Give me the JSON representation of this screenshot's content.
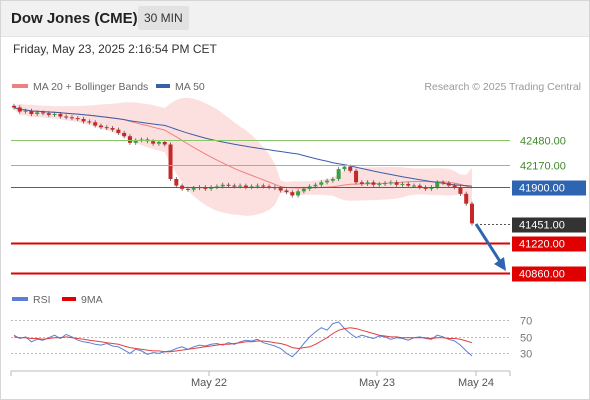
{
  "header": {
    "title": "Dow Jones (CME)",
    "timeframe": "30 MIN",
    "datetime": "Friday, May 23, 2025 2:16:54 PM CET"
  },
  "legend": {
    "ma20": "MA 20 + Bollinger Bands",
    "ma50": "MA 50",
    "copyright": "Research © 2025 Trading Central",
    "rsi": "RSI",
    "rsi_ma": "9MA"
  },
  "colors": {
    "ma20": "#f08080",
    "ma50": "#3b5ea8",
    "bollinger_fill": "#fbdada",
    "resistance": "#8cc46a",
    "pivot": "#2e64b0",
    "support": "#e00000",
    "current_price_box": "#333333",
    "arrow": "#2e64b0",
    "candle_up": "#3aa040",
    "candle_down": "#c62828"
  },
  "chart_data": {
    "type": "candlestick",
    "ylim": [
      40650,
      42900
    ],
    "levels": [
      {
        "label": "42480.00",
        "value": 42480,
        "kind": "resistance"
      },
      {
        "label": "42170.00",
        "value": 42170,
        "kind": "resistance"
      },
      {
        "label": "41900.00",
        "value": 41900,
        "kind": "pivot"
      },
      {
        "label": "41451.00",
        "value": 41451,
        "kind": "current"
      },
      {
        "label": "41220.00",
        "value": 41220,
        "kind": "support"
      },
      {
        "label": "40860.00",
        "value": 40860,
        "kind": "support"
      }
    ],
    "x_ticks": [
      "May 22",
      "May 23",
      "May 24"
    ],
    "close": [
      42870,
      42820,
      42830,
      42790,
      42810,
      42800,
      42780,
      42790,
      42760,
      42750,
      42740,
      42730,
      42700,
      42690,
      42650,
      42630,
      42620,
      42600,
      42560,
      42520,
      42440,
      42470,
      42480,
      42460,
      42430,
      42450,
      42420,
      42000,
      41920,
      41880,
      41870,
      41890,
      41900,
      41880,
      41900,
      41910,
      41930,
      41920,
      41910,
      41920,
      41900,
      41910,
      41920,
      41910,
      41900,
      41890,
      41860,
      41840,
      41800,
      41850,
      41880,
      41910,
      41930,
      41960,
      41980,
      42000,
      42120,
      42150,
      42100,
      41960,
      41940,
      41960,
      41930,
      41940,
      41950,
      41960,
      41930,
      41940,
      41920,
      41920,
      41900,
      41880,
      41900,
      41960,
      41950,
      41920,
      41900,
      41820,
      41700,
      41460
    ],
    "rsi": [
      52,
      48,
      50,
      44,
      47,
      46,
      49,
      52,
      48,
      53,
      50,
      46,
      44,
      43,
      41,
      40,
      42,
      39,
      38,
      34,
      30,
      35,
      33,
      29,
      31,
      30,
      32,
      33,
      36,
      38,
      35,
      38,
      40,
      39,
      41,
      42,
      40,
      43,
      41,
      44,
      46,
      45,
      47,
      43,
      41,
      39,
      36,
      30,
      26,
      33,
      42,
      50,
      56,
      61,
      58,
      66,
      68,
      60,
      54,
      49,
      52,
      50,
      48,
      51,
      50,
      47,
      49,
      48,
      46,
      49,
      50,
      48,
      47,
      52,
      50,
      47,
      45,
      40,
      33,
      27
    ],
    "rsi_ma": [
      50,
      49,
      49,
      48,
      48,
      47,
      48,
      49,
      49,
      50,
      49,
      48,
      47,
      46,
      45,
      44,
      43,
      42,
      41,
      39,
      37,
      36,
      35,
      34,
      33,
      33,
      32,
      32,
      33,
      34,
      35,
      36,
      37,
      38,
      39,
      40,
      41,
      41,
      42,
      43,
      44,
      44,
      45,
      45,
      44,
      43,
      42,
      40,
      37,
      36,
      37,
      38,
      41,
      45,
      49,
      54,
      58,
      60,
      61,
      60,
      58,
      56,
      54,
      52,
      51,
      50,
      50,
      49,
      49,
      49,
      49,
      49,
      48,
      49,
      49,
      48,
      48,
      47,
      45,
      43
    ],
    "rsi_levels": [
      {
        "label": "70",
        "value": 70
      },
      {
        "label": "50",
        "value": 50
      },
      {
        "label": "30",
        "value": 30
      }
    ],
    "rsi_ylim": [
      10,
      80
    ]
  }
}
